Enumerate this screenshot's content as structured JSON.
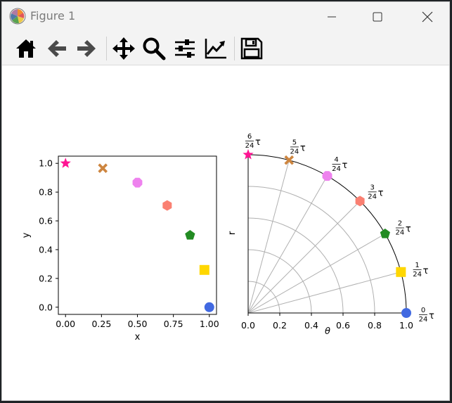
{
  "window": {
    "title": "Figure 1"
  },
  "toolbar": {
    "buttons": [
      {
        "name": "home-icon",
        "label": "Home"
      },
      {
        "name": "back-arrow-icon",
        "label": "Back"
      },
      {
        "name": "forward-arrow-icon",
        "label": "Forward"
      },
      {
        "name": "pan-move-icon",
        "label": "Pan"
      },
      {
        "name": "zoom-magnifier-icon",
        "label": "Zoom"
      },
      {
        "name": "configure-subplots-icon",
        "label": "Subplots"
      },
      {
        "name": "edit-axis-icon",
        "label": "Customize"
      },
      {
        "name": "save-floppy-icon",
        "label": "Save"
      }
    ]
  },
  "chart_data": [
    {
      "type": "scatter",
      "xlabel": "x",
      "ylabel": "y",
      "xlim": [
        -0.05,
        1.05
      ],
      "ylim": [
        -0.05,
        1.05
      ],
      "xticks": [
        "0.00",
        "0.25",
        "0.50",
        "0.75",
        "1.00"
      ],
      "yticks": [
        "0.0",
        "0.2",
        "0.4",
        "0.6",
        "0.8",
        "1.0"
      ],
      "points": [
        {
          "x": 1.0,
          "y": 0.0,
          "marker": "circle",
          "color": "#4169e1"
        },
        {
          "x": 0.966,
          "y": 0.259,
          "marker": "square",
          "color": "#ffd700"
        },
        {
          "x": 0.866,
          "y": 0.5,
          "marker": "pentagon",
          "color": "#228b22"
        },
        {
          "x": 0.707,
          "y": 0.707,
          "marker": "hexagon",
          "color": "#fa8072"
        },
        {
          "x": 0.5,
          "y": 0.866,
          "marker": "octagon",
          "color": "#ee82ee"
        },
        {
          "x": 0.259,
          "y": 0.966,
          "marker": "x",
          "color": "#cd853f"
        },
        {
          "x": 0.0,
          "y": 1.0,
          "marker": "star",
          "color": "#ff1493"
        }
      ]
    },
    {
      "type": "polar-scatter",
      "xlabel": "θ",
      "ylabel": "r",
      "rlim": [
        0,
        1.0
      ],
      "theta_unit": "τ",
      "theta_ticks": [
        {
          "num": "0",
          "den": "24"
        },
        {
          "num": "1",
          "den": "24"
        },
        {
          "num": "2",
          "den": "24"
        },
        {
          "num": "3",
          "den": "24"
        },
        {
          "num": "4",
          "den": "24"
        },
        {
          "num": "5",
          "den": "24"
        },
        {
          "num": "6",
          "den": "24"
        }
      ],
      "rticks": [
        "0.0",
        "0.2",
        "0.4",
        "0.6",
        "0.8",
        "1.0"
      ],
      "points": [
        {
          "theta_24ths_tau": 0,
          "r": 1.0,
          "marker": "circle",
          "color": "#4169e1"
        },
        {
          "theta_24ths_tau": 1,
          "r": 1.0,
          "marker": "square",
          "color": "#ffd700"
        },
        {
          "theta_24ths_tau": 2,
          "r": 1.0,
          "marker": "pentagon",
          "color": "#228b22"
        },
        {
          "theta_24ths_tau": 3,
          "r": 1.0,
          "marker": "hexagon",
          "color": "#fa8072"
        },
        {
          "theta_24ths_tau": 4,
          "r": 1.0,
          "marker": "octagon",
          "color": "#ee82ee"
        },
        {
          "theta_24ths_tau": 5,
          "r": 1.0,
          "marker": "x",
          "color": "#cd853f"
        },
        {
          "theta_24ths_tau": 6,
          "r": 1.0,
          "marker": "star",
          "color": "#ff1493"
        }
      ]
    }
  ]
}
